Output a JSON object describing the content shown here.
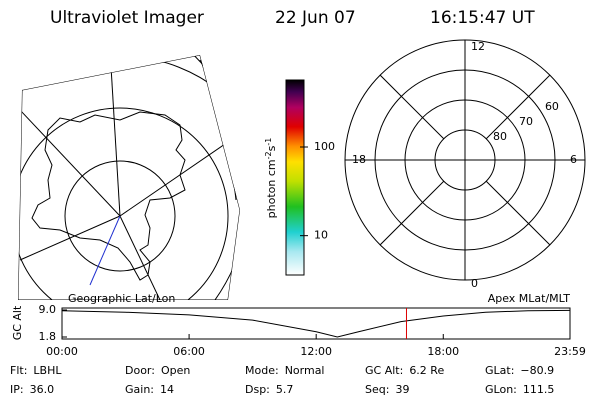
{
  "header": {
    "title": "Ultraviolet Imager",
    "date": "22 Jun 07",
    "time": "16:15:47 UT"
  },
  "colorbar": {
    "label": "photon cm",
    "sup1": "-2",
    "unit2": "s",
    "sup2": "-1",
    "ylim": [
      3.6,
      570
    ],
    "ticks": [
      10,
      100
    ],
    "log": true
  },
  "polar": {
    "mlt_labels": [
      12,
      6,
      0,
      18
    ],
    "mlat_labels": [
      80,
      70,
      60
    ]
  },
  "left_label": "Geographic Lat/Lon",
  "right_label": "Apex MLat/MLT",
  "chart_data": {
    "type": "line",
    "ylabel": "GC Alt",
    "x": [
      0,
      3,
      6,
      9,
      12,
      13,
      14,
      16,
      18,
      20,
      22,
      24
    ],
    "series": [
      {
        "name": "GC Alt",
        "color": "#000000",
        "values": [
          8.8,
          8.4,
          7.7,
          6.3,
          3.2,
          1.8,
          3.2,
          5.9,
          7.4,
          8.4,
          8.8,
          8.9
        ]
      }
    ],
    "xlim": [
      0,
      23.983
    ],
    "ylim": [
      1.8,
      9.0
    ],
    "xticks": [
      {
        "value": 0,
        "label": "00:00"
      },
      {
        "value": 6,
        "label": "06:00"
      },
      {
        "value": 12,
        "label": "12:00"
      },
      {
        "value": 18,
        "label": "18:00"
      },
      {
        "value": 23.983,
        "label": "23:59"
      }
    ],
    "yticks": [
      1.8,
      {
        "value": 9.0,
        "label": "9.0"
      }
    ],
    "current_x": 16.263,
    "current_color": "#dd0000"
  },
  "footer": [
    [
      {
        "label": "Flt:",
        "value": "LBHL"
      },
      {
        "label": "Door:",
        "value": "Open"
      },
      {
        "label": "Mode:",
        "value": "Normal"
      },
      {
        "label": "GC Alt:",
        "value": "6.2 Re"
      },
      {
        "label": "GLat:",
        "value": "−80.9"
      }
    ],
    [
      {
        "label": "IP:",
        "value": "36.0"
      },
      {
        "label": "Gain:",
        "value": "14"
      },
      {
        "label": "Dsp:",
        "value": "5.7"
      },
      {
        "label": "Seq:",
        "value": "39"
      },
      {
        "label": "GLon:",
        "value": "111.5"
      }
    ]
  ]
}
